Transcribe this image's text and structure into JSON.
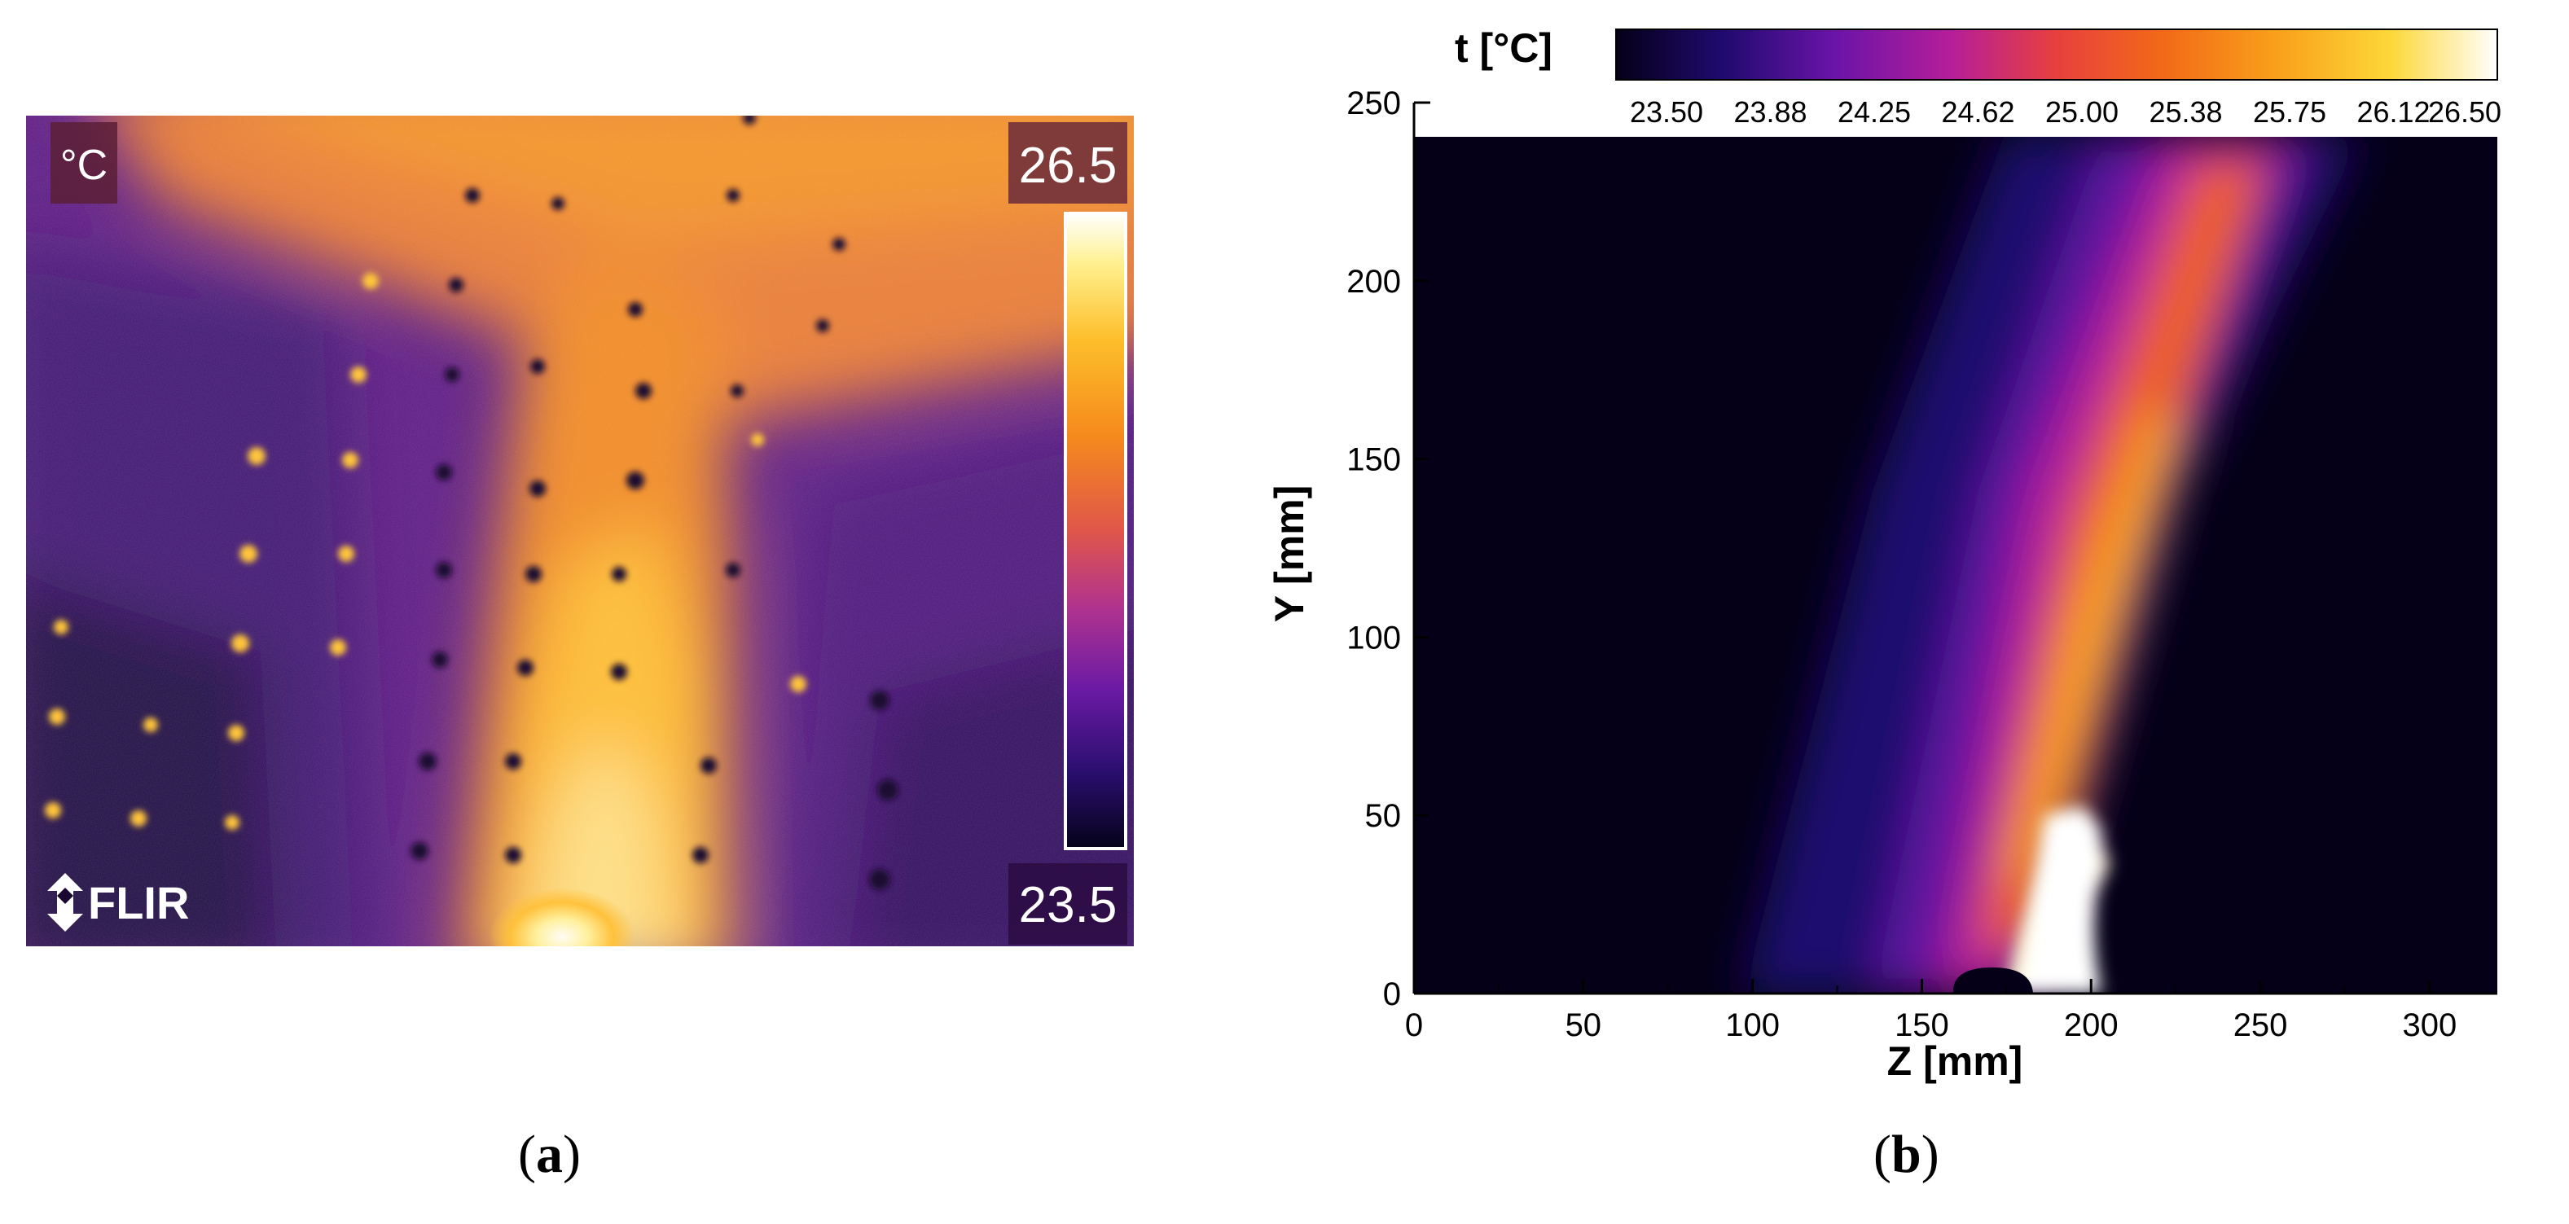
{
  "panel_a": {
    "caption_open": "(",
    "caption_letter": "a",
    "caption_close": ")",
    "unit_label": "°C",
    "scale_max_label": "26.5",
    "scale_min_label": "23.5",
    "brand_logo_text": "FLIR",
    "colormap": "ironbow"
  },
  "panel_b": {
    "caption_open": "(",
    "caption_letter": "b",
    "caption_close": ")",
    "colorbar_title": "t [°C]",
    "colorbar_ticks": [
      "23.50",
      "23.88",
      "24.25",
      "24.62",
      "25.00",
      "25.38",
      "25.75",
      "26.12",
      "26.50"
    ],
    "x_axis_label": "Z [mm]",
    "y_axis_label": "Y [mm]",
    "x_ticks": [
      "0",
      "50",
      "100",
      "150",
      "200",
      "250",
      "300"
    ],
    "y_ticks": [
      "0",
      "50",
      "100",
      "150",
      "200",
      "250"
    ],
    "x_range": [
      0,
      320
    ],
    "y_range": [
      0,
      250
    ],
    "colormap": "ironbow"
  }
}
